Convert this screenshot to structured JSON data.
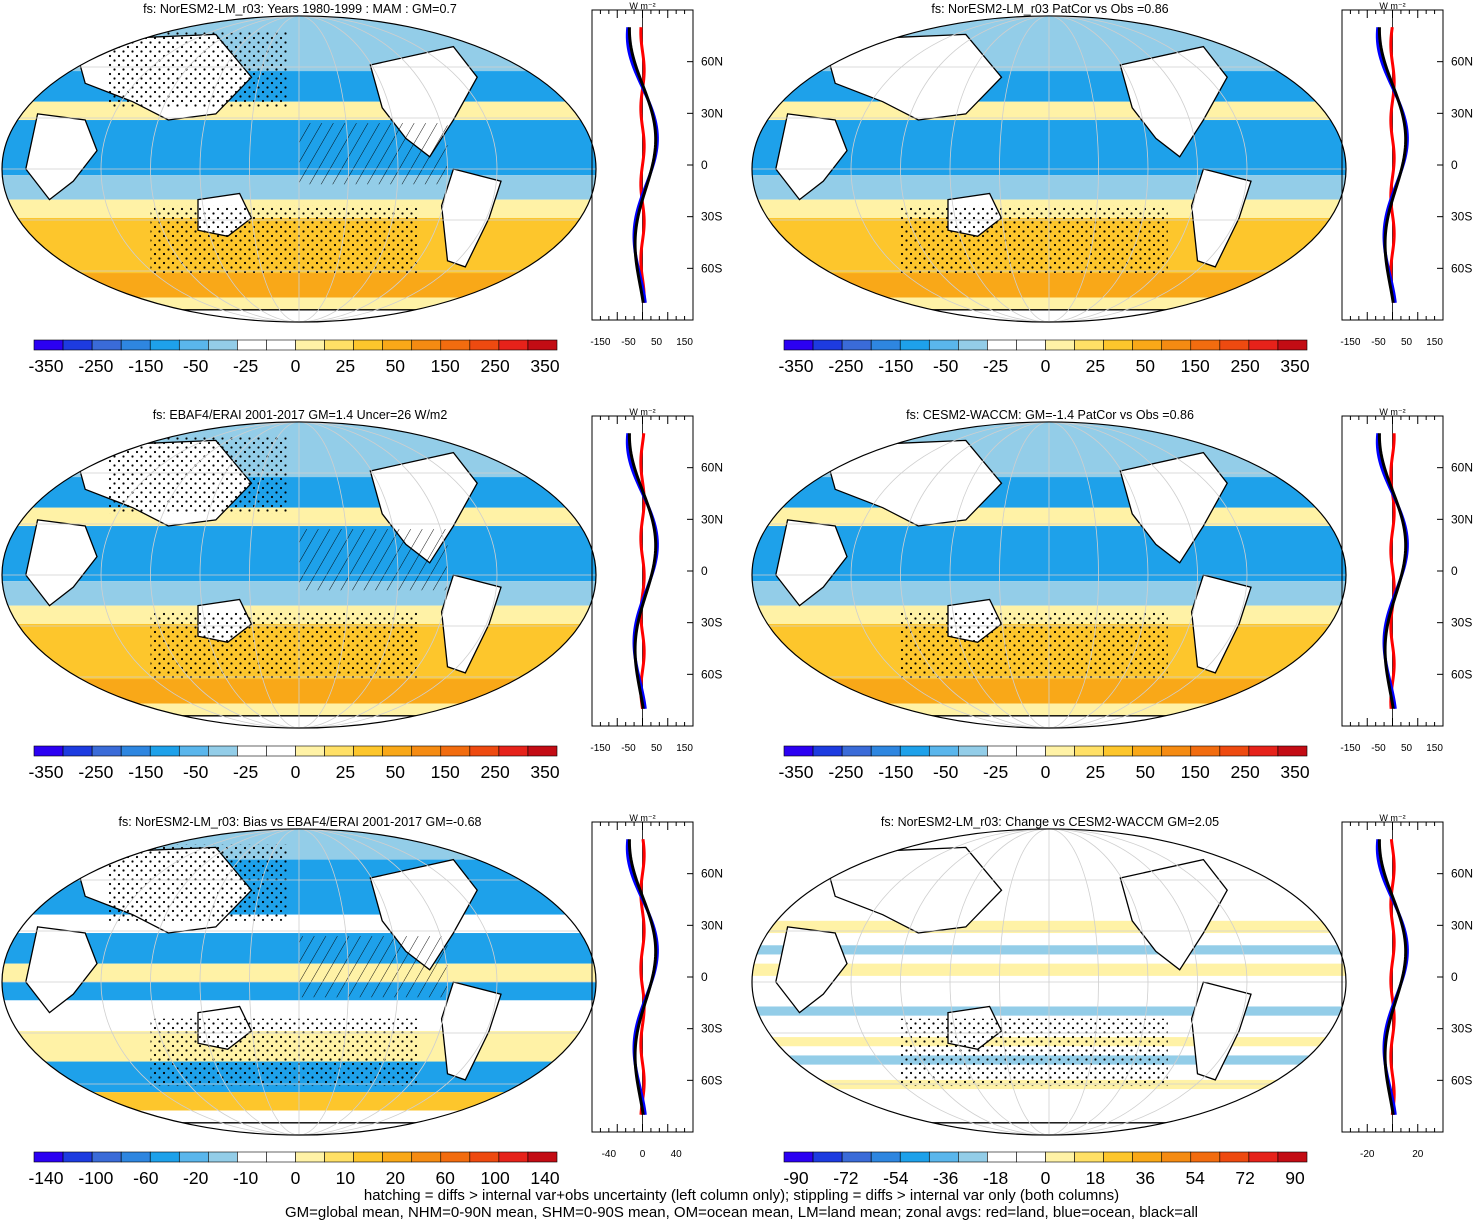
{
  "panels": [
    {
      "id": "p1",
      "title": "fs: NorESM2-LM_r03: Years 1980-1999 : MAM : GM=0.7",
      "zonal_unit": "W m⁻²",
      "zonal_ticks": [
        "-150",
        "-50",
        "50",
        "150"
      ],
      "lat_labels": [
        "60N",
        "30N",
        "0",
        "30S",
        "60S"
      ],
      "colorbar_labels": [
        "-350",
        "-250",
        "-150",
        "-50",
        "-25",
        "0",
        "25",
        "50",
        "150",
        "250",
        "350"
      ],
      "style": "A",
      "hatching": true
    },
    {
      "id": "p2",
      "title": "fs: NorESM2-LM_r03 PatCor vs Obs =0.86",
      "zonal_unit": "W m⁻²",
      "zonal_ticks": [
        "-150",
        "-50",
        "50",
        "150"
      ],
      "lat_labels": [
        "60N",
        "30N",
        "0",
        "30S",
        "60S"
      ],
      "colorbar_labels": [
        "-350",
        "-250",
        "-150",
        "-50",
        "-25",
        "0",
        "25",
        "50",
        "150",
        "250",
        "350"
      ],
      "style": "A",
      "hatching": false
    },
    {
      "id": "p3",
      "title": "fs: EBAF4/ERAI 2001-2017 GM=1.4 Uncer=26 W/m2",
      "zonal_unit": "W m⁻²",
      "zonal_ticks": [
        "-150",
        "-50",
        "50",
        "150"
      ],
      "lat_labels": [
        "60N",
        "30N",
        "0",
        "30S",
        "60S"
      ],
      "colorbar_labels": [
        "-350",
        "-250",
        "-150",
        "-50",
        "-25",
        "0",
        "25",
        "50",
        "150",
        "250",
        "350"
      ],
      "style": "A",
      "hatching": true
    },
    {
      "id": "p4",
      "title": "fs: CESM2-WACCM: GM=-1.4 PatCor vs Obs =0.86",
      "zonal_unit": "W m⁻²",
      "zonal_ticks": [
        "-150",
        "-50",
        "50",
        "150"
      ],
      "lat_labels": [
        "60N",
        "30N",
        "0",
        "30S",
        "60S"
      ],
      "colorbar_labels": [
        "-350",
        "-250",
        "-150",
        "-50",
        "-25",
        "0",
        "25",
        "50",
        "150",
        "250",
        "350"
      ],
      "style": "A",
      "hatching": false
    },
    {
      "id": "p5",
      "title": "fs: NorESM2-LM_r03: Bias vs EBAF4/ERAI 2001-2017 GM=-0.68",
      "zonal_unit": "W m⁻²",
      "zonal_ticks": [
        "-40",
        "0",
        "40"
      ],
      "lat_labels": [
        "60N",
        "30N",
        "0",
        "30S",
        "60S"
      ],
      "colorbar_labels": [
        "-140",
        "-100",
        "-60",
        "-20",
        "-10",
        "0",
        "10",
        "20",
        "60",
        "100",
        "140"
      ],
      "style": "B",
      "hatching": true
    },
    {
      "id": "p6",
      "title": "fs: NorESM2-LM_r03: Change vs CESM2-WACCM GM=2.05",
      "zonal_unit": "W m⁻²",
      "zonal_ticks": [
        "-20",
        "20"
      ],
      "lat_labels": [
        "60N",
        "30N",
        "0",
        "30S",
        "60S"
      ],
      "colorbar_labels": [
        "-90",
        "-72",
        "-54",
        "-36",
        "-18",
        "0",
        "18",
        "36",
        "54",
        "72",
        "90"
      ],
      "style": "C",
      "hatching": false
    }
  ],
  "colorbar_colors": [
    "#2b00f2",
    "#1d3be0",
    "#3a6bd8",
    "#2e86e0",
    "#1ea1ea",
    "#5ab6ec",
    "#93cde8",
    "#ffffff",
    "#ffffff",
    "#fff2a6",
    "#ffe066",
    "#fdc62c",
    "#f9a818",
    "#f58b12",
    "#f26c0f",
    "#ee4a10",
    "#e6221a",
    "#c30c14"
  ],
  "series_colors": {
    "land": "#ff0000",
    "ocean": "#0000ff",
    "all": "#000000"
  },
  "footer": {
    "line1": "hatching = diffs > internal var+obs uncertainty (left column only); stippling = diffs > internal var only (both columns)",
    "line2": "GM=global mean, NHM=0-90N mean, SHM=0-90S mean, OM=ocean mean, LM=land mean; zonal avgs: red=land, blue=ocean, black=all"
  },
  "chart_data": [
    {
      "type": "heatmap",
      "title": "fs: NorESM2-LM_r03: Years 1980-1999 : MAM : GM=0.7",
      "xlabel": "",
      "ylabel": "",
      "colorbar": [
        -350,
        -250,
        -150,
        -50,
        -25,
        0,
        25,
        50,
        150,
        250,
        350
      ],
      "zonal_mean_xlim": [
        -150,
        150
      ],
      "zonal_ylim": [
        -90,
        90
      ]
    },
    {
      "type": "heatmap",
      "title": "fs: NorESM2-LM_r03 PatCor vs Obs =0.86",
      "xlabel": "",
      "ylabel": "",
      "colorbar": [
        -350,
        -250,
        -150,
        -50,
        -25,
        0,
        25,
        50,
        150,
        250,
        350
      ],
      "zonal_mean_xlim": [
        -150,
        150
      ],
      "zonal_ylim": [
        -90,
        90
      ]
    },
    {
      "type": "heatmap",
      "title": "fs: EBAF4/ERAI 2001-2017 GM=1.4 Uncer=26 W/m2",
      "xlabel": "",
      "ylabel": "",
      "colorbar": [
        -350,
        -250,
        -150,
        -50,
        -25,
        0,
        25,
        50,
        150,
        250,
        350
      ],
      "zonal_mean_xlim": [
        -150,
        150
      ],
      "zonal_ylim": [
        -90,
        90
      ]
    },
    {
      "type": "heatmap",
      "title": "fs: CESM2-WACCM: GM=-1.4 PatCor vs Obs =0.86",
      "xlabel": "",
      "ylabel": "",
      "colorbar": [
        -350,
        -250,
        -150,
        -50,
        -25,
        0,
        25,
        50,
        150,
        250,
        350
      ],
      "zonal_mean_xlim": [
        -150,
        150
      ],
      "zonal_ylim": [
        -90,
        90
      ]
    },
    {
      "type": "heatmap",
      "title": "fs: NorESM2-LM_r03: Bias vs EBAF4/ERAI 2001-2017 GM=-0.68",
      "xlabel": "",
      "ylabel": "",
      "colorbar": [
        -140,
        -100,
        -60,
        -20,
        -10,
        0,
        10,
        20,
        60,
        100,
        140
      ],
      "zonal_mean_xlim": [
        -60,
        60
      ],
      "zonal_ylim": [
        -90,
        90
      ]
    },
    {
      "type": "heatmap",
      "title": "fs: NorESM2-LM_r03: Change vs CESM2-WACCM GM=2.05",
      "xlabel": "",
      "ylabel": "",
      "colorbar": [
        -90,
        -72,
        -54,
        -36,
        -18,
        0,
        18,
        36,
        54,
        72,
        90
      ],
      "zonal_mean_xlim": [
        -40,
        40
      ],
      "zonal_ylim": [
        -90,
        90
      ]
    }
  ]
}
